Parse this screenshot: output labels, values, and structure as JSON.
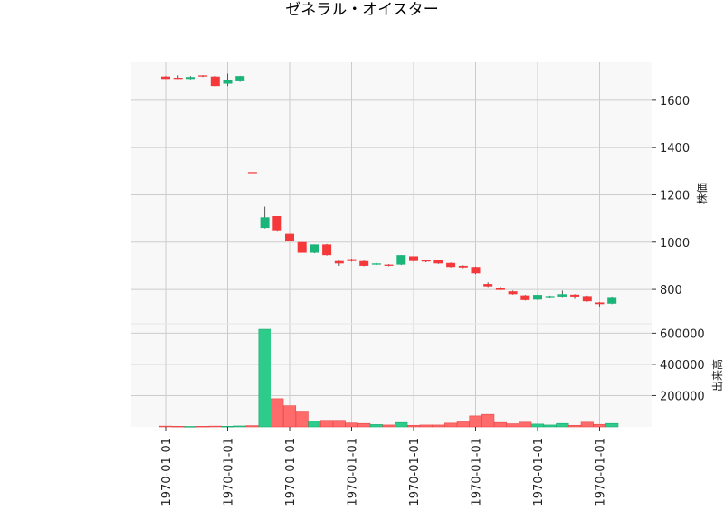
{
  "chart_data": {
    "type": "candlestick",
    "title": "ゼネラル・オイスター",
    "price_ylabel": "株価",
    "volume_ylabel": "出来高",
    "price_yticks": [
      800,
      1000,
      1200,
      1400,
      1600
    ],
    "price_ylim": [
      655,
      1760
    ],
    "volume_yticks": [
      200000,
      400000,
      600000
    ],
    "volume_tick_labels": [
      "200000",
      "400000",
      "600000"
    ],
    "volume_ylim": [
      0,
      660000
    ],
    "x_tick_labels": [
      "1970-01-01",
      "1970-01-01",
      "1970-01-01",
      "1970-01-01",
      "1970-01-01",
      "1970-01-01",
      "1970-01-01",
      "1970-01-01"
    ],
    "x_tick_index": [
      0,
      5,
      10,
      15,
      20,
      25,
      30,
      35
    ],
    "grid": true,
    "colors": {
      "up": "#1bb57a",
      "down": "#f5393b",
      "vol_up": "#2ecc8a",
      "vol_down": "#ff6b6b",
      "wick": "#555555",
      "panel_bg": "#f8f8f8",
      "grid": "#cccccc"
    },
    "candles": [
      {
        "open": 1700,
        "close": 1690,
        "high": 1702,
        "low": 1690,
        "volume": 5000
      },
      {
        "open": 1695,
        "close": 1690,
        "high": 1705,
        "low": 1690,
        "volume": 4000
      },
      {
        "open": 1690,
        "close": 1698,
        "high": 1702,
        "low": 1688,
        "volume": 3000
      },
      {
        "open": 1705,
        "close": 1700,
        "high": 1706,
        "low": 1698,
        "volume": 4000
      },
      {
        "open": 1700,
        "close": 1660,
        "high": 1702,
        "low": 1660,
        "volume": 5000
      },
      {
        "open": 1670,
        "close": 1685,
        "high": 1712,
        "low": 1660,
        "volume": 4000
      },
      {
        "open": 1680,
        "close": 1702,
        "high": 1703,
        "low": 1678,
        "volume": 6000
      },
      {
        "open": 1296,
        "close": 1293,
        "high": 1296,
        "low": 1293,
        "volume": 8000
      },
      {
        "open": 1060,
        "close": 1105,
        "high": 1150,
        "low": 1058,
        "volume": 625000
      },
      {
        "open": 1110,
        "close": 1050,
        "high": 1110,
        "low": 1048,
        "volume": 180000
      },
      {
        "open": 1035,
        "close": 1005,
        "high": 1035,
        "low": 1003,
        "volume": 135000
      },
      {
        "open": 1000,
        "close": 955,
        "high": 1000,
        "low": 955,
        "volume": 95000
      },
      {
        "open": 955,
        "close": 990,
        "high": 990,
        "low": 953,
        "volume": 38000
      },
      {
        "open": 990,
        "close": 945,
        "high": 992,
        "low": 943,
        "volume": 42000
      },
      {
        "open": 920,
        "close": 910,
        "high": 922,
        "low": 900,
        "volume": 42000
      },
      {
        "open": 928,
        "close": 920,
        "high": 930,
        "low": 918,
        "volume": 25000
      },
      {
        "open": 920,
        "close": 900,
        "high": 922,
        "low": 898,
        "volume": 22000
      },
      {
        "open": 905,
        "close": 910,
        "high": 912,
        "low": 903,
        "volume": 15000
      },
      {
        "open": 905,
        "close": 900,
        "high": 907,
        "low": 898,
        "volume": 12000
      },
      {
        "open": 905,
        "close": 945,
        "high": 945,
        "low": 903,
        "volume": 28000
      },
      {
        "open": 940,
        "close": 920,
        "high": 940,
        "low": 918,
        "volume": 10000
      },
      {
        "open": 925,
        "close": 918,
        "high": 926,
        "low": 915,
        "volume": 12000
      },
      {
        "open": 923,
        "close": 910,
        "high": 924,
        "low": 908,
        "volume": 12000
      },
      {
        "open": 912,
        "close": 895,
        "high": 914,
        "low": 893,
        "volume": 24000
      },
      {
        "open": 900,
        "close": 893,
        "high": 902,
        "low": 890,
        "volume": 32000
      },
      {
        "open": 895,
        "close": 868,
        "high": 897,
        "low": 865,
        "volume": 70000
      },
      {
        "open": 823,
        "close": 813,
        "high": 830,
        "low": 810,
        "volume": 80000
      },
      {
        "open": 807,
        "close": 798,
        "high": 812,
        "low": 796,
        "volume": 28000
      },
      {
        "open": 792,
        "close": 780,
        "high": 795,
        "low": 778,
        "volume": 20000
      },
      {
        "open": 775,
        "close": 755,
        "high": 777,
        "low": 753,
        "volume": 30000
      },
      {
        "open": 757,
        "close": 777,
        "high": 779,
        "low": 755,
        "volume": 18000
      },
      {
        "open": 768,
        "close": 772,
        "high": 774,
        "low": 762,
        "volume": 12000
      },
      {
        "open": 770,
        "close": 780,
        "high": 795,
        "low": 768,
        "volume": 22000
      },
      {
        "open": 778,
        "close": 770,
        "high": 780,
        "low": 760,
        "volume": 10000
      },
      {
        "open": 772,
        "close": 750,
        "high": 774,
        "low": 748,
        "volume": 30000
      },
      {
        "open": 745,
        "close": 738,
        "high": 747,
        "low": 728,
        "volume": 16000
      },
      {
        "open": 740,
        "close": 768,
        "high": 770,
        "low": 738,
        "volume": 22000
      }
    ]
  }
}
